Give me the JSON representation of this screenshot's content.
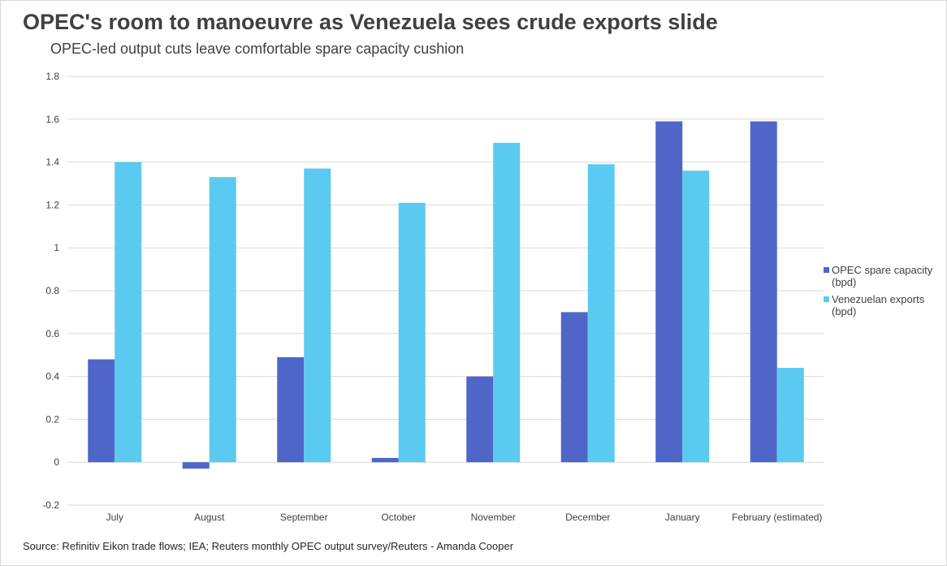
{
  "chart_data": {
    "type": "bar",
    "title": "OPEC's room to manoeuvre as Venezuela sees crude exports slide",
    "subtitle": "OPEC-led output cuts leave comfortable spare capacity cushion",
    "categories": [
      "July",
      "August",
      "September",
      "October",
      "November",
      "December",
      "January",
      "February (estimated)"
    ],
    "series": [
      {
        "name": "OPEC spare capacity (bpd)",
        "color": "#4f66c8",
        "values": [
          0.48,
          -0.03,
          0.49,
          0.02,
          0.4,
          0.7,
          1.59,
          1.59
        ]
      },
      {
        "name": "Venezuelan exports (bpd)",
        "color": "#5bcaf0",
        "values": [
          1.4,
          1.33,
          1.37,
          1.21,
          1.49,
          1.39,
          1.36,
          0.44
        ]
      }
    ],
    "ylim": [
      -0.2,
      1.8
    ],
    "yticks": [
      "-0.2",
      "0",
      "0.2",
      "0.4",
      "0.6",
      "0.8",
      "1",
      "1.2",
      "1.4",
      "1.6",
      "1.8"
    ],
    "grid": true,
    "legend_position": "right",
    "source": "Source: Refinitiv Eikon trade flows; IEA; Reuters monthly OPEC output survey/Reuters  - Amanda Cooper"
  }
}
